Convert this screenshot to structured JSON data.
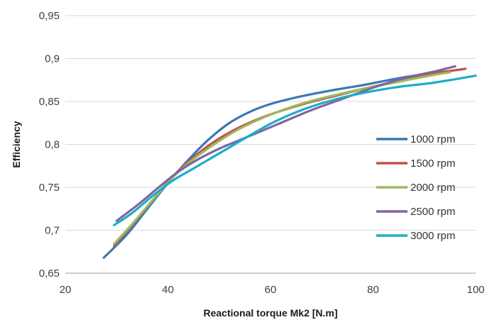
{
  "chart_data": {
    "type": "line",
    "xlabel": "Reactional torque Mk2 [N.m]",
    "ylabel": "Efficiency",
    "xlim": [
      20,
      100
    ],
    "ylim": [
      0.65,
      0.95
    ],
    "x_ticks": [
      "20",
      "40",
      "60",
      "80",
      "100"
    ],
    "y_ticks": [
      "0,65",
      "0,7",
      "0,75",
      "0,8",
      "0,85",
      "0,9",
      "0,95"
    ],
    "grid": "horizontal",
    "legend_position": "right",
    "series": [
      {
        "name": "1000 rpm",
        "color": "#3B78B5",
        "x": [
          27.5,
          32,
          36,
          40,
          44,
          48,
          52,
          56,
          60,
          66,
          72,
          78,
          84,
          88,
          93
        ],
        "y": [
          0.668,
          0.695,
          0.725,
          0.755,
          0.782,
          0.806,
          0.825,
          0.838,
          0.847,
          0.856,
          0.863,
          0.869,
          0.876,
          0.88,
          0.884
        ]
      },
      {
        "name": "1500 rpm",
        "color": "#C0504D",
        "x": [
          29.5,
          33,
          37,
          41,
          45,
          49,
          53,
          57,
          61,
          67,
          73,
          79,
          85,
          91,
          98
        ],
        "y": [
          0.682,
          0.706,
          0.735,
          0.763,
          0.785,
          0.803,
          0.817,
          0.828,
          0.837,
          0.848,
          0.857,
          0.866,
          0.874,
          0.882,
          0.888
        ]
      },
      {
        "name": "2000 rpm",
        "color": "#9BBB59",
        "x": [
          29.5,
          33,
          37,
          41,
          45,
          49,
          53,
          57,
          61,
          67,
          73,
          79,
          85,
          91,
          95
        ],
        "y": [
          0.684,
          0.707,
          0.735,
          0.762,
          0.783,
          0.8,
          0.815,
          0.827,
          0.837,
          0.849,
          0.858,
          0.866,
          0.873,
          0.88,
          0.884
        ]
      },
      {
        "name": "2500 rpm",
        "color": "#8064A2",
        "x": [
          30,
          34,
          38,
          42,
          46,
          50,
          54,
          58,
          62,
          68,
          74,
          80,
          86,
          92,
          96
        ],
        "y": [
          0.711,
          0.729,
          0.749,
          0.768,
          0.783,
          0.795,
          0.805,
          0.815,
          0.825,
          0.84,
          0.853,
          0.866,
          0.877,
          0.885,
          0.891
        ]
      },
      {
        "name": "3000 rpm",
        "color": "#19AEC8",
        "x": [
          29.5,
          33,
          37,
          41,
          45,
          49,
          53,
          57,
          61,
          67,
          73,
          79,
          85,
          92,
          100
        ],
        "y": [
          0.706,
          0.72,
          0.74,
          0.758,
          0.772,
          0.786,
          0.8,
          0.814,
          0.827,
          0.842,
          0.853,
          0.861,
          0.867,
          0.872,
          0.88
        ]
      }
    ]
  }
}
